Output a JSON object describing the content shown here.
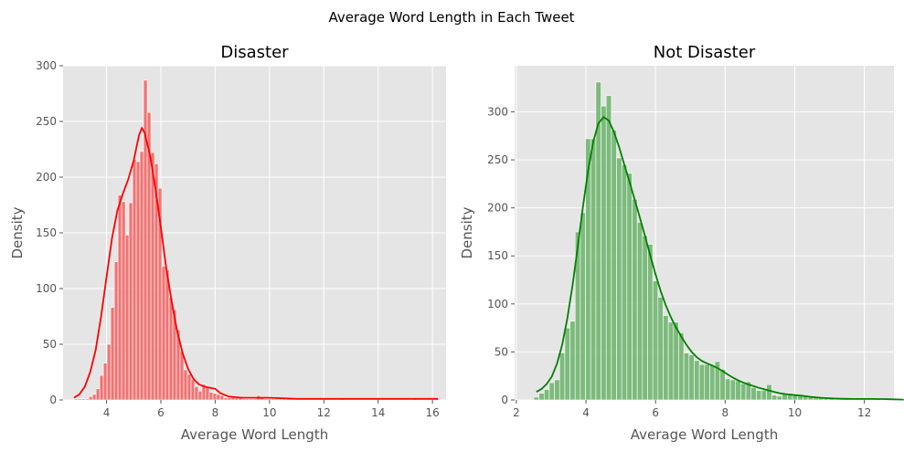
{
  "figure": {
    "suptitle": "Average Word Length in Each Tweet"
  },
  "chart_data": [
    {
      "type": "histogram",
      "title": "Disaster",
      "xlabel": "Average Word Length",
      "ylabel": "Density",
      "xlim": [
        2.4,
        16.5
      ],
      "ylim": [
        0,
        300
      ],
      "xticks": [
        4,
        6,
        8,
        10,
        12,
        14,
        16
      ],
      "yticks": [
        0,
        50,
        100,
        150,
        200,
        250,
        300
      ],
      "grid": true,
      "bar_color": "#f25f5f",
      "kde_color": "#ff0000",
      "bin_start": 2.81,
      "bin_width": 0.1344,
      "counts": [
        1,
        1,
        1,
        1,
        3,
        5,
        10,
        22,
        33,
        50,
        83,
        124,
        184,
        178,
        148,
        177,
        216,
        214,
        223,
        287,
        258,
        222,
        212,
        190,
        120,
        117,
        92,
        81,
        63,
        44,
        27,
        23,
        18,
        12,
        8,
        14,
        11,
        7,
        6,
        5,
        4,
        2,
        2,
        3,
        2,
        2,
        1,
        1,
        1,
        1,
        4,
        2,
        1,
        1,
        1,
        1,
        1,
        1,
        1,
        1,
        0,
        0,
        0,
        0,
        0,
        0,
        0,
        0,
        0,
        0,
        0,
        0,
        0,
        1,
        0,
        0,
        0,
        0,
        0,
        0,
        0,
        0,
        0,
        0,
        0,
        0,
        0,
        0,
        0,
        0,
        0,
        0,
        0,
        1,
        0,
        0,
        0,
        0,
        0,
        1
      ],
      "kde": [
        [
          2.8,
          2
        ],
        [
          3.0,
          5
        ],
        [
          3.2,
          12
        ],
        [
          3.4,
          25
        ],
        [
          3.6,
          45
        ],
        [
          3.8,
          75
        ],
        [
          4.0,
          110
        ],
        [
          4.2,
          145
        ],
        [
          4.4,
          170
        ],
        [
          4.6,
          185
        ],
        [
          4.8,
          198
        ],
        [
          5.0,
          215
        ],
        [
          5.2,
          238
        ],
        [
          5.3,
          244
        ],
        [
          5.4,
          240
        ],
        [
          5.6,
          220
        ],
        [
          5.8,
          190
        ],
        [
          6.0,
          155
        ],
        [
          6.2,
          118
        ],
        [
          6.4,
          88
        ],
        [
          6.6,
          62
        ],
        [
          6.8,
          42
        ],
        [
          7.0,
          28
        ],
        [
          7.2,
          19
        ],
        [
          7.4,
          14
        ],
        [
          7.6,
          12
        ],
        [
          7.8,
          11
        ],
        [
          8.0,
          10
        ],
        [
          8.2,
          6
        ],
        [
          8.5,
          3
        ],
        [
          9.0,
          2
        ],
        [
          10.0,
          2
        ],
        [
          11.0,
          1
        ],
        [
          12.0,
          1
        ],
        [
          13.0,
          1
        ],
        [
          14.0,
          1
        ],
        [
          15.0,
          1
        ],
        [
          16.2,
          1
        ]
      ]
    },
    {
      "type": "histogram",
      "title": "Not Disaster",
      "xlabel": "Average Word Length",
      "ylabel": "Density",
      "xlim": [
        1.95,
        12.85
      ],
      "ylim": [
        0,
        348
      ],
      "xticks": [
        2,
        4,
        6,
        8,
        10,
        12
      ],
      "yticks": [
        0,
        50,
        100,
        150,
        200,
        250,
        300
      ],
      "grid": true,
      "bar_color": "#6bb36b",
      "kde_color": "#008000",
      "bin_start": 2.5,
      "bin_width": 0.1487,
      "counts": [
        3,
        7,
        11,
        18,
        21,
        49,
        75,
        82,
        175,
        195,
        272,
        272,
        331,
        306,
        317,
        281,
        252,
        245,
        236,
        209,
        185,
        171,
        162,
        124,
        107,
        88,
        81,
        81,
        70,
        49,
        47,
        41,
        37,
        37,
        36,
        40,
        32,
        22,
        21,
        20,
        17,
        19,
        13,
        10,
        10,
        16,
        5,
        4,
        6,
        7,
        5,
        5,
        4,
        3,
        2,
        2,
        2,
        2,
        1,
        1,
        1,
        1,
        1,
        1,
        1,
        1,
        1,
        1,
        1,
        1,
        0,
        0
      ]
    }
  ]
}
